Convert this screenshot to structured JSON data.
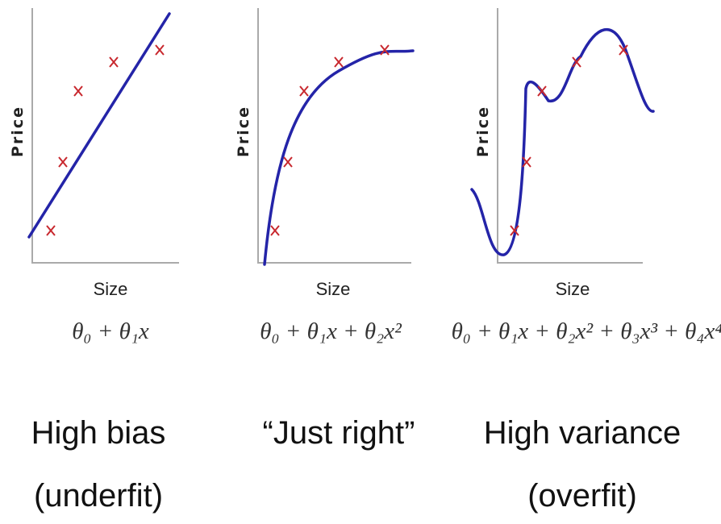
{
  "panels": [
    {
      "y_label": "Price",
      "x_label": "Size",
      "formula": "θ₀ + θ₁x",
      "caption": [
        "High bias",
        "(underfit)"
      ]
    },
    {
      "y_label": "Price",
      "x_label": "Size",
      "formula": "θ₀ + θ₁x + θ₂x²",
      "caption": [
        "“Just right”"
      ]
    },
    {
      "y_label": "Price",
      "x_label": "Size",
      "formula": "θ₀ + θ₁x + θ₂x² + θ₃x³ + θ₄x⁴",
      "caption": [
        "High variance",
        "(overfit)"
      ]
    }
  ]
}
